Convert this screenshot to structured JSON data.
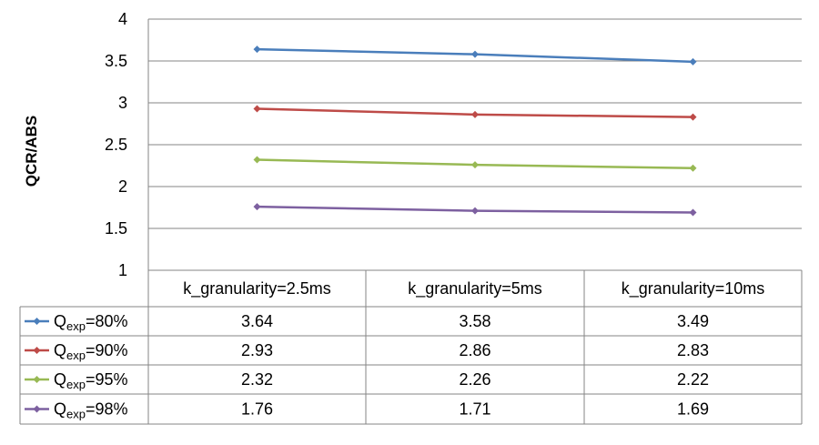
{
  "chart_data": {
    "type": "line",
    "title": "",
    "ylabel": "QCR/ABS",
    "xlabel": "",
    "ylim": [
      1,
      4
    ],
    "yticks": [
      1,
      1.5,
      2,
      2.5,
      3,
      3.5,
      4
    ],
    "ytick_labels": [
      "1",
      "1.5",
      "2",
      "2.5",
      "3",
      "3.5",
      "4"
    ],
    "grid": true,
    "legend": "data-table",
    "categories": [
      "k_granularity=2.5ms",
      "k_granularity=5ms",
      "k_granularity=10ms"
    ],
    "series": [
      {
        "name_main": "Q",
        "name_sub": "exp",
        "name_tail": "=80%",
        "color": "#4a7ebb",
        "values": [
          3.64,
          3.58,
          3.49
        ],
        "labels": [
          "3.64",
          "3.58",
          "3.49"
        ]
      },
      {
        "name_main": "Q",
        "name_sub": "exp",
        "name_tail": "=90%",
        "color": "#be4b48",
        "values": [
          2.93,
          2.86,
          2.83
        ],
        "labels": [
          "2.93",
          "2.86",
          "2.83"
        ]
      },
      {
        "name_main": "Q",
        "name_sub": "exp",
        "name_tail": "=95%",
        "color": "#98b954",
        "values": [
          2.32,
          2.26,
          2.22
        ],
        "labels": [
          "2.32",
          "2.26",
          "2.22"
        ]
      },
      {
        "name_main": "Q",
        "name_sub": "exp",
        "name_tail": "=98%",
        "color": "#7d60a0",
        "values": [
          1.76,
          1.71,
          1.69
        ],
        "labels": [
          "1.76",
          "1.71",
          "1.69"
        ]
      }
    ]
  }
}
